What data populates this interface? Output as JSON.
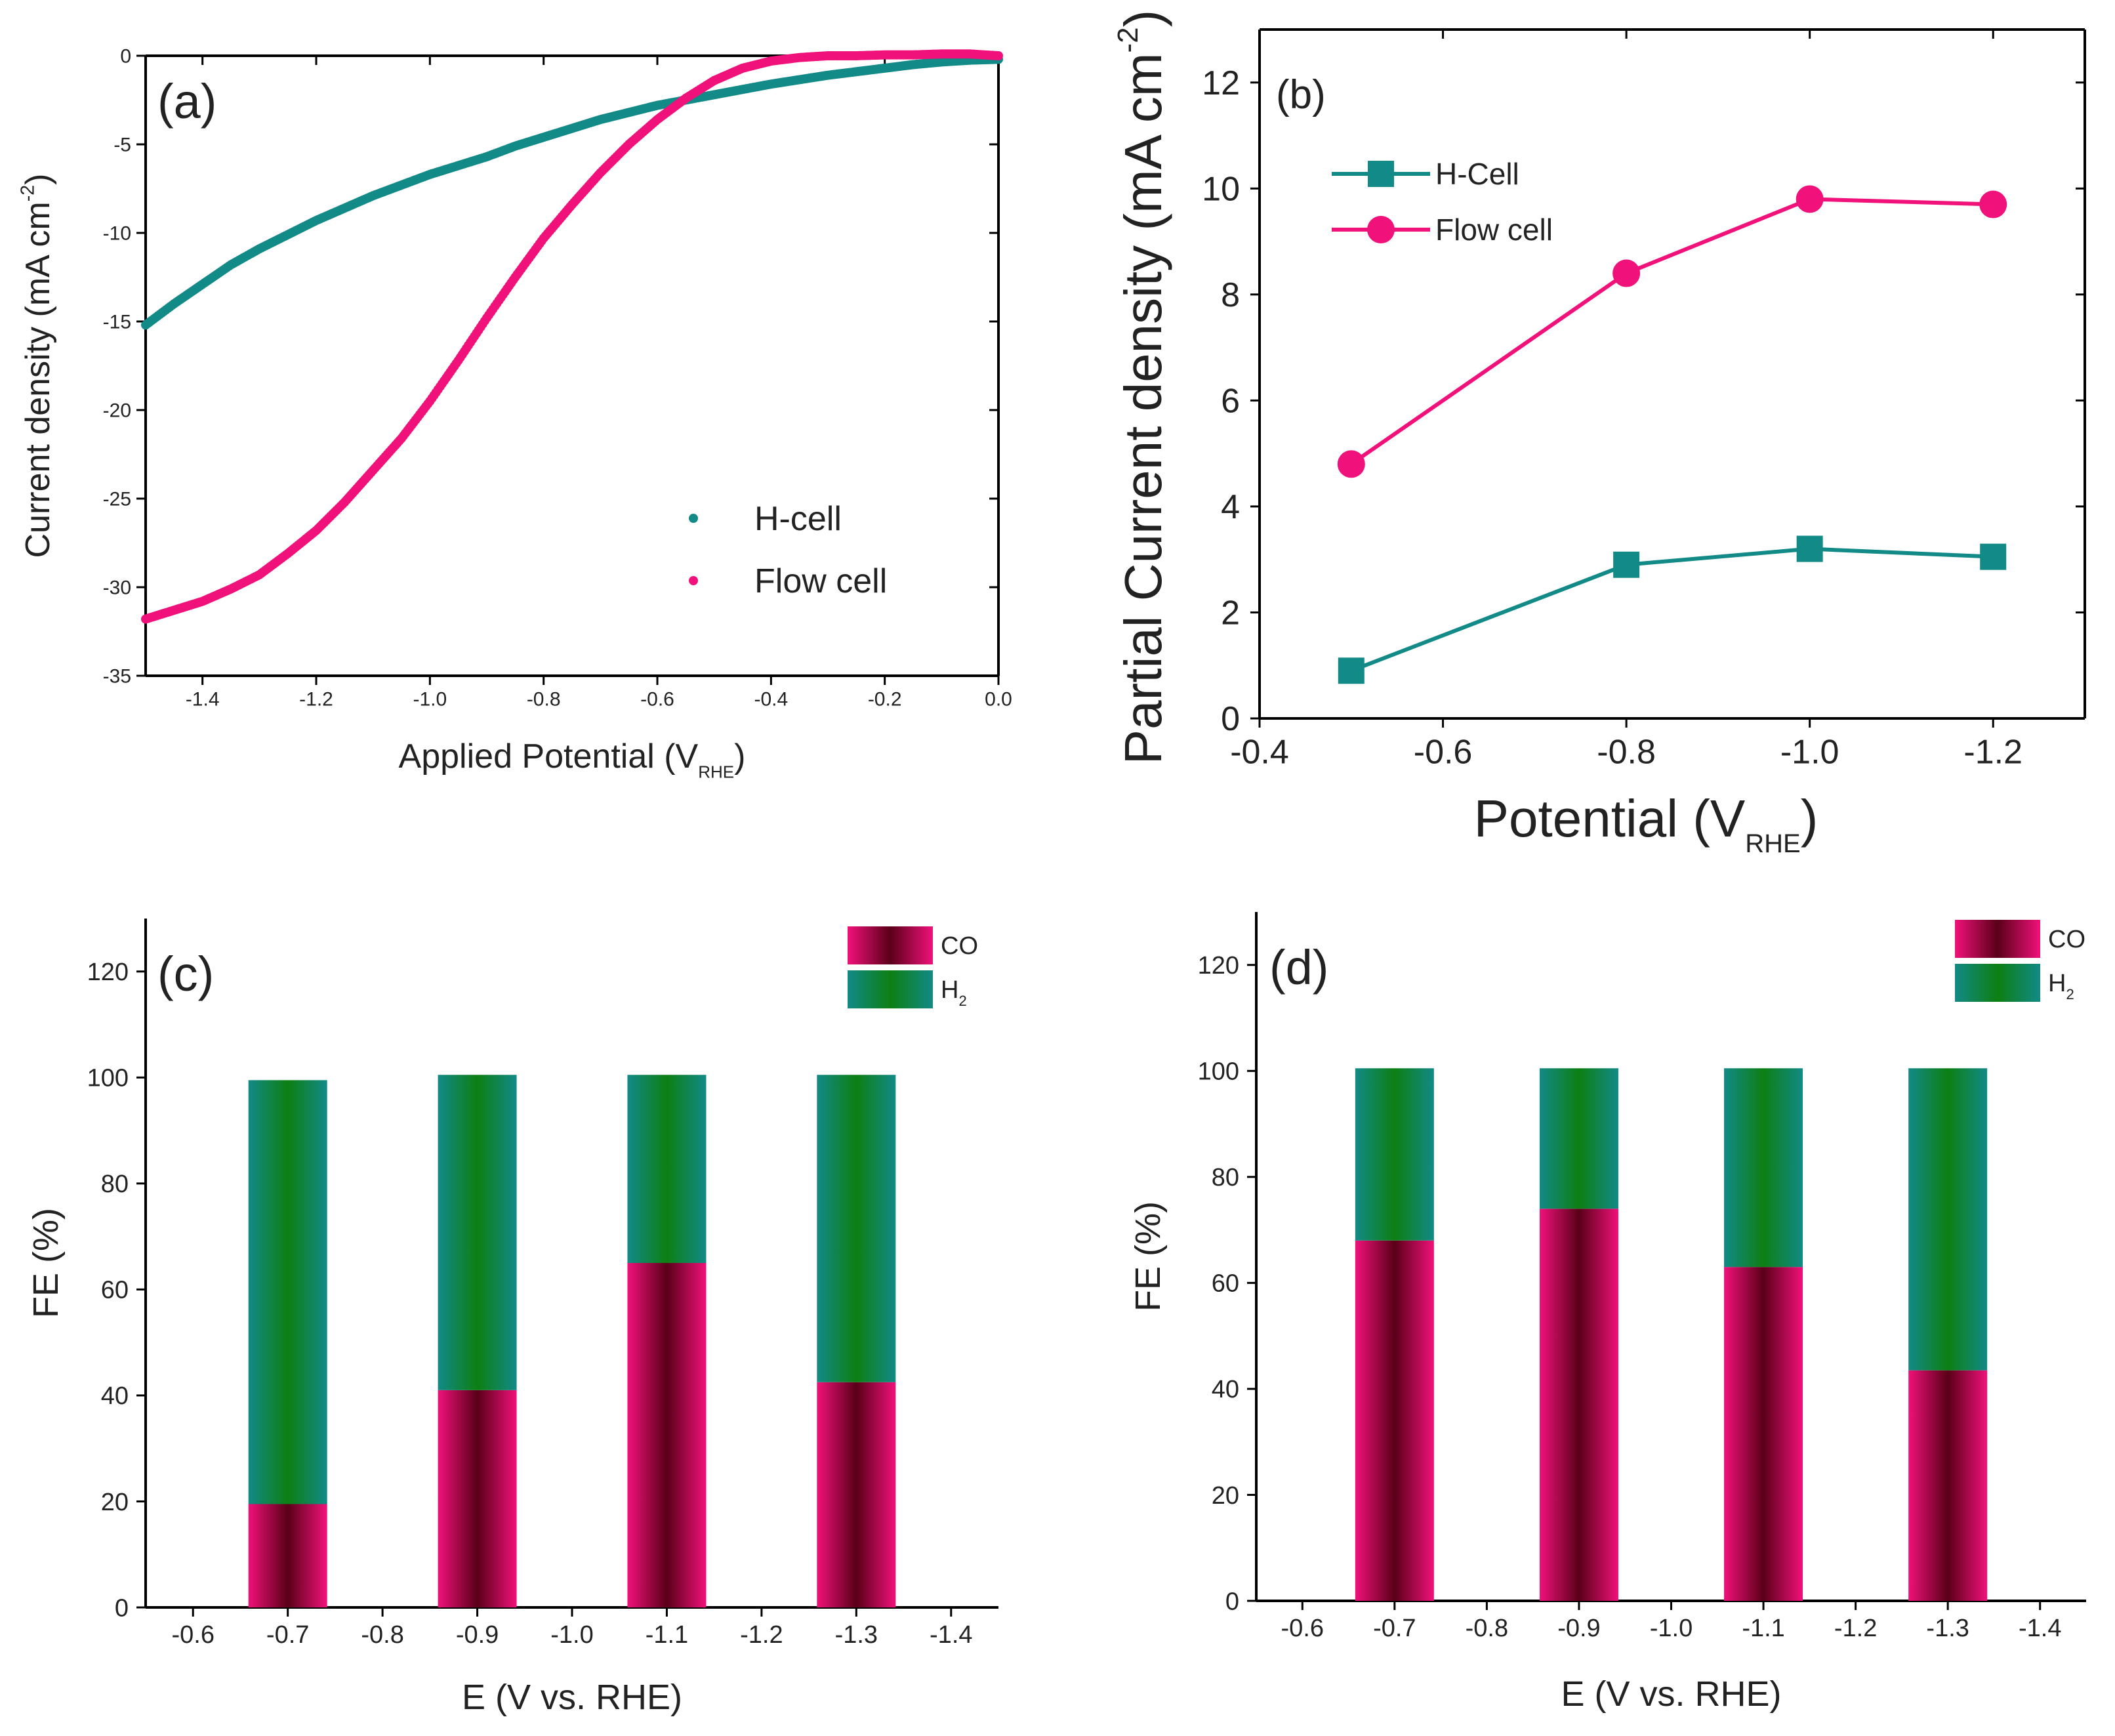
{
  "colors": {
    "hcell": "#128a87",
    "flow": "#f0117a",
    "co_center": "#5a0018",
    "h2_center": "#0d7f12"
  },
  "chart_data": [
    {
      "id": "a",
      "type": "scatter",
      "panel_label": "(a)",
      "xlabel": "Applied Potential (V",
      "xlabel_sub": "RHE",
      "xlabel_close": ")",
      "ylabel": "Current density (mA cm",
      "ylabel_sup": "-2",
      "ylabel_close": ")",
      "xlim": [
        -1.5,
        0.0
      ],
      "ylim": [
        -35,
        0
      ],
      "xticks": [
        -1.4,
        -1.2,
        -1.0,
        -0.8,
        -0.6,
        -0.4,
        -0.2,
        0.0
      ],
      "xtick_labels": [
        "-1.4",
        "-1.2",
        "-1.0",
        "-0.8",
        "-0.6",
        "-0.4",
        "-0.2",
        "0.0"
      ],
      "yticks": [
        0,
        -5,
        -10,
        -15,
        -20,
        -25,
        -30,
        -35
      ],
      "ytick_labels": [
        "0",
        "-5",
        "-10",
        "-15",
        "-20",
        "-25",
        "-30",
        "-35"
      ],
      "legend": "center-right",
      "series": [
        {
          "name": "H-cell",
          "color_key": "hcell",
          "x": [
            -1.5,
            -1.45,
            -1.4,
            -1.35,
            -1.3,
            -1.25,
            -1.2,
            -1.15,
            -1.1,
            -1.05,
            -1.0,
            -0.95,
            -0.9,
            -0.85,
            -0.8,
            -0.75,
            -0.7,
            -0.65,
            -0.6,
            -0.55,
            -0.5,
            -0.45,
            -0.4,
            -0.35,
            -0.3,
            -0.25,
            -0.2,
            -0.15,
            -0.1,
            -0.05,
            0.0
          ],
          "y": [
            -15.2,
            -14.0,
            -12.9,
            -11.8,
            -10.9,
            -10.1,
            -9.3,
            -8.6,
            -7.9,
            -7.3,
            -6.7,
            -6.2,
            -5.7,
            -5.1,
            -4.6,
            -4.1,
            -3.6,
            -3.2,
            -2.8,
            -2.5,
            -2.2,
            -1.9,
            -1.6,
            -1.35,
            -1.1,
            -0.9,
            -0.7,
            -0.5,
            -0.35,
            -0.25,
            -0.2
          ]
        },
        {
          "name": "Flow cell",
          "color_key": "flow",
          "x": [
            -1.5,
            -1.45,
            -1.4,
            -1.35,
            -1.3,
            -1.25,
            -1.2,
            -1.15,
            -1.1,
            -1.05,
            -1.0,
            -0.95,
            -0.9,
            -0.85,
            -0.8,
            -0.75,
            -0.7,
            -0.65,
            -0.6,
            -0.55,
            -0.5,
            -0.45,
            -0.4,
            -0.35,
            -0.3,
            -0.25,
            -0.2,
            -0.15,
            -0.1,
            -0.05,
            0.0
          ],
          "y": [
            -31.8,
            -31.3,
            -30.8,
            -30.1,
            -29.3,
            -28.1,
            -26.8,
            -25.2,
            -23.4,
            -21.6,
            -19.5,
            -17.2,
            -14.8,
            -12.5,
            -10.3,
            -8.4,
            -6.6,
            -5.0,
            -3.6,
            -2.4,
            -1.4,
            -0.7,
            -0.3,
            -0.1,
            0.0,
            0.0,
            0.05,
            0.05,
            0.1,
            0.1,
            0.0
          ]
        }
      ]
    },
    {
      "id": "b",
      "type": "line",
      "panel_label": "(b)",
      "xlabel": "Potential (V",
      "xlabel_sub": "RHE",
      "xlabel_close": ")",
      "ylabel": "Partial Current density (mA cm",
      "ylabel_sup": "-2",
      "ylabel_close": ")",
      "xlim": [
        -0.4,
        -1.3
      ],
      "ylim": [
        0,
        13
      ],
      "xticks": [
        -0.4,
        -0.6,
        -0.8,
        -1.0,
        -1.2
      ],
      "xtick_labels": [
        "-0.4",
        "-0.6",
        "-0.8",
        "-1.0",
        "-1.2"
      ],
      "yticks": [
        0,
        2,
        4,
        6,
        8,
        10,
        12
      ],
      "ytick_labels": [
        "0",
        "2",
        "4",
        "6",
        "8",
        "10",
        "12"
      ],
      "legend": "top-left",
      "series": [
        {
          "name": "H-Cell",
          "color_key": "hcell",
          "marker": "square",
          "x": [
            -0.5,
            -0.8,
            -1.0,
            -1.2
          ],
          "y": [
            0.9,
            2.9,
            3.2,
            3.05
          ]
        },
        {
          "name": "Flow cell",
          "color_key": "flow",
          "marker": "circle",
          "x": [
            -0.5,
            -0.8,
            -1.0,
            -1.2
          ],
          "y": [
            4.8,
            8.4,
            9.8,
            9.7
          ]
        }
      ]
    },
    {
      "id": "c",
      "type": "bar",
      "stacked": true,
      "panel_label": "(c)",
      "xlabel": "E (V vs. RHE)",
      "ylabel": "FE (%)",
      "xlim": [
        -0.55,
        -1.45
      ],
      "ylim": [
        0,
        130
      ],
      "xticks": [
        -0.6,
        -0.7,
        -0.8,
        -0.9,
        -1.0,
        -1.1,
        -1.2,
        -1.3,
        -1.4
      ],
      "xtick_labels": [
        "-0.6",
        "-0.7",
        "-0.8",
        "-0.9",
        "-1.0",
        "-1.1",
        "-1.2",
        "-1.3",
        "-1.4"
      ],
      "yticks": [
        0,
        20,
        40,
        60,
        80,
        100,
        120
      ],
      "ytick_labels": [
        "0",
        "20",
        "40",
        "60",
        "80",
        "100",
        "120"
      ],
      "legend": "top-right",
      "categories": [
        -0.7,
        -0.9,
        -1.1,
        -1.3
      ],
      "series": [
        {
          "name": "CO",
          "legend_text": "CO",
          "legend_sub": "",
          "color_key": "flow",
          "center_key": "co_center",
          "values": [
            19.5,
            41,
            65,
            42.5
          ]
        },
        {
          "name": "H2",
          "legend_text": "H",
          "legend_sub": "2",
          "color_key": "hcell",
          "center_key": "h2_center",
          "values": [
            80,
            59.5,
            35.5,
            58
          ]
        }
      ]
    },
    {
      "id": "d",
      "type": "bar",
      "stacked": true,
      "panel_label": "(d)",
      "xlabel": "E (V vs. RHE)",
      "ylabel": "FE (%)",
      "xlim": [
        -0.55,
        -1.45
      ],
      "ylim": [
        0,
        130
      ],
      "xticks": [
        -0.6,
        -0.7,
        -0.8,
        -0.9,
        -1.0,
        -1.1,
        -1.2,
        -1.3,
        -1.4
      ],
      "xtick_labels": [
        "-0.6",
        "-0.7",
        "-0.8",
        "-0.9",
        "-1.0",
        "-1.1",
        "-1.2",
        "-1.3",
        "-1.4"
      ],
      "yticks": [
        0,
        20,
        40,
        60,
        80,
        100,
        120
      ],
      "ytick_labels": [
        "0",
        "20",
        "40",
        "60",
        "80",
        "100",
        "120"
      ],
      "legend": "top-right",
      "categories": [
        -0.7,
        -0.9,
        -1.1,
        -1.3
      ],
      "series": [
        {
          "name": "CO",
          "legend_text": "CO",
          "legend_sub": "",
          "color_key": "flow",
          "center_key": "co_center",
          "values": [
            68,
            74,
            63,
            43.5
          ]
        },
        {
          "name": "H2",
          "legend_text": "H",
          "legend_sub": "2",
          "color_key": "hcell",
          "center_key": "h2_center",
          "values": [
            32.5,
            26.5,
            37.5,
            57
          ]
        }
      ]
    }
  ]
}
